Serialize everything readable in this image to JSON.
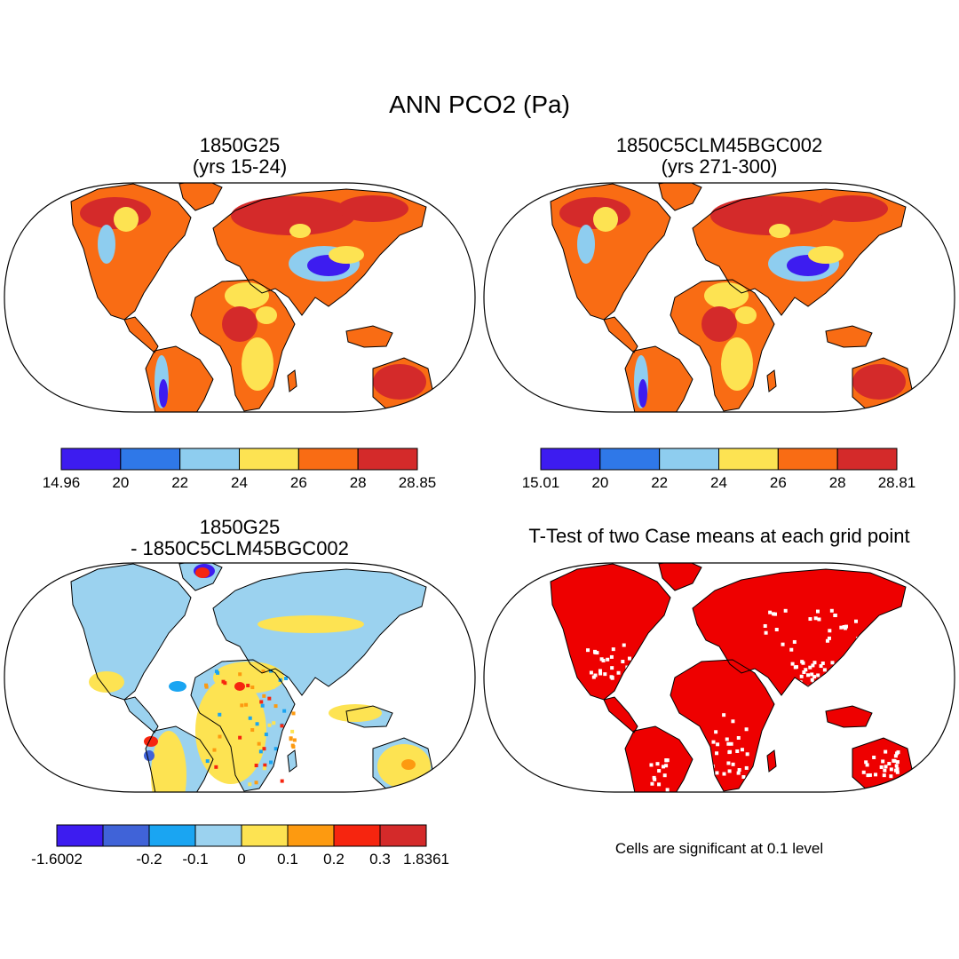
{
  "title": "ANN PCO2 (Pa)",
  "panels": [
    {
      "title_line1": "1850G25",
      "title_line2": "(yrs 15-24)",
      "colorbar": {
        "colors": [
          "#3d1cf0",
          "#2f78e8",
          "#8ecdef",
          "#fde352",
          "#f96c14",
          "#d42a2a"
        ],
        "labels": [
          "14.96",
          "20",
          "22",
          "24",
          "26",
          "28",
          "28.85"
        ]
      }
    },
    {
      "title_line1": "1850C5CLM45BGC002",
      "title_line2": "(yrs 271-300)",
      "colorbar": {
        "colors": [
          "#3d1cf0",
          "#2f78e8",
          "#8ecdef",
          "#fde352",
          "#f96c14",
          "#d42a2a"
        ],
        "labels": [
          "15.01",
          "20",
          "22",
          "24",
          "26",
          "28",
          "28.81"
        ]
      }
    },
    {
      "title_line1": "1850G25",
      "title_line2": "- 1850C5CLM45BGC002",
      "colorbar": {
        "colors": [
          "#3d1cf0",
          "#4063d8",
          "#1aa5f2",
          "#9bd2ef",
          "#fde352",
          "#fd9a10",
          "#f6250f",
          "#d42a2a"
        ],
        "labels": [
          "-1.6002",
          "",
          "-0.2",
          "-0.1",
          "0",
          "0.1",
          "0.2",
          "0.3",
          "1.8361"
        ]
      }
    },
    {
      "title_line1": "T-Test of two Case means at each grid point",
      "title_line2": "",
      "note": "Cells are significant at 0.1 level",
      "colors": {
        "significant": "#ee0000",
        "background": "#ffffff"
      }
    }
  ]
}
